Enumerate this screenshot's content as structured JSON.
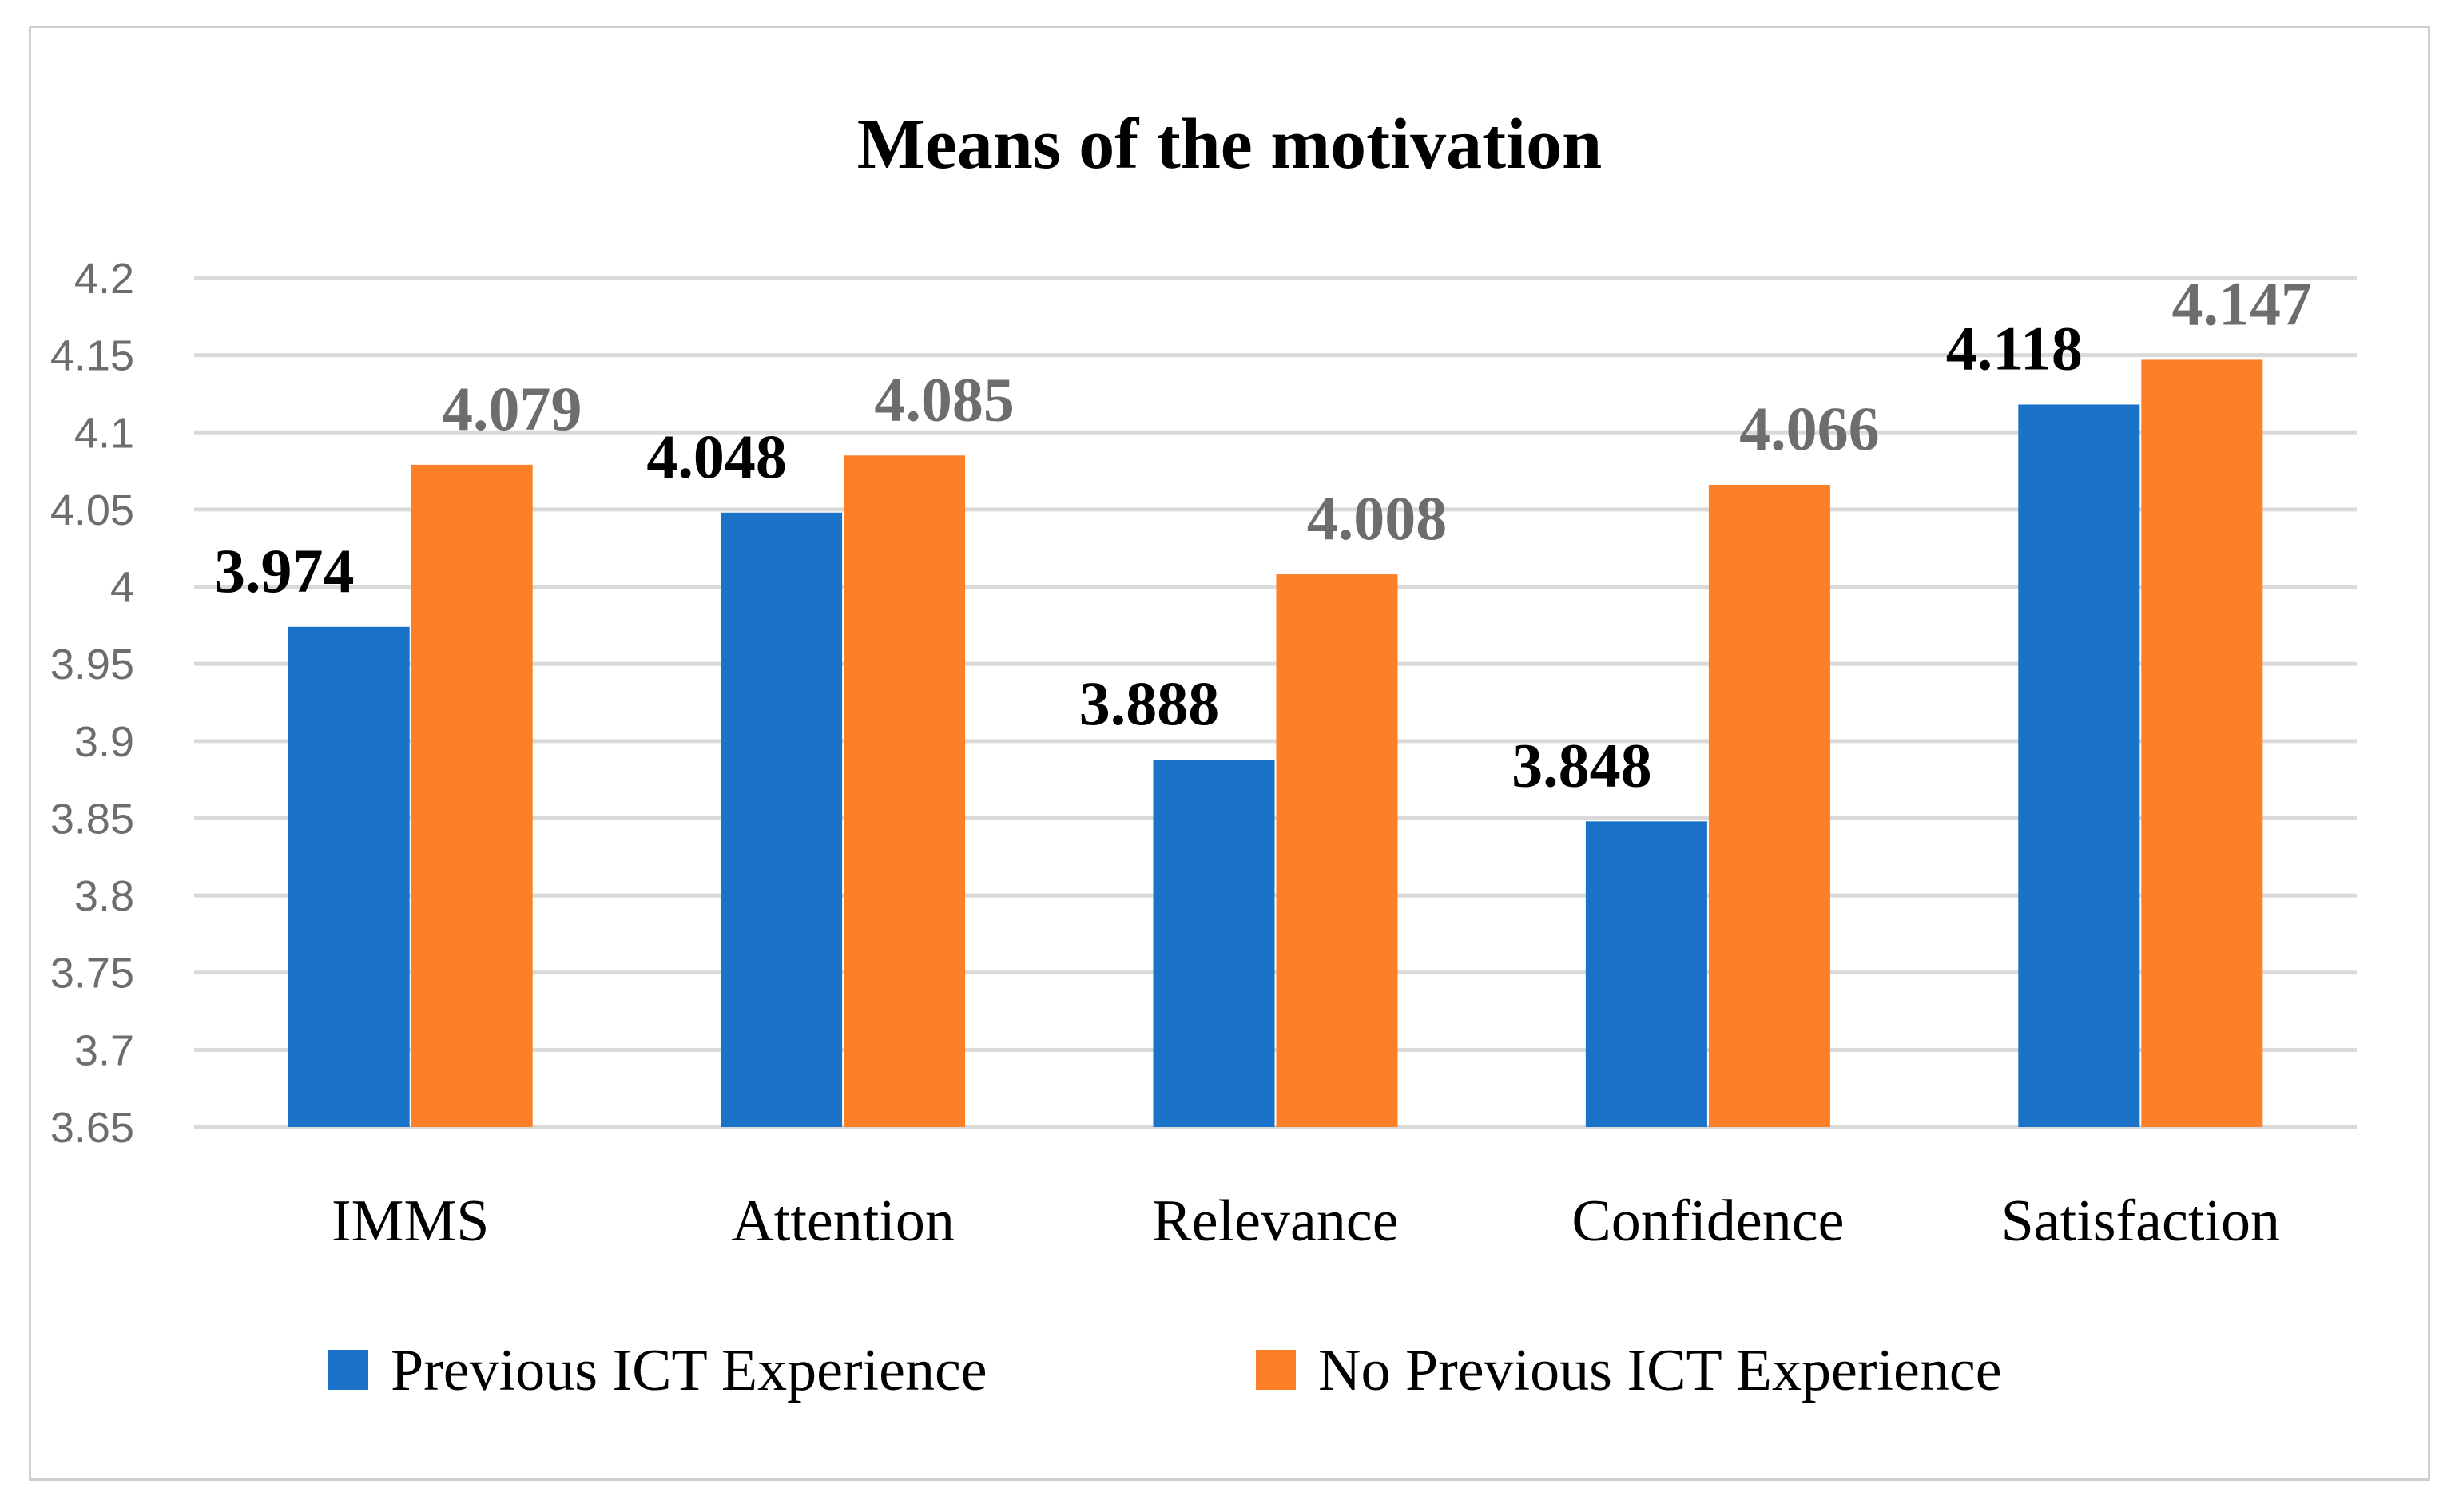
{
  "chart_data": {
    "type": "bar",
    "title": "Means of the motivation",
    "categories": [
      "IMMS",
      "Attention",
      "Relevance",
      "Confidence",
      "Satisfaction"
    ],
    "series": [
      {
        "name": "Previous ICT Experience",
        "color": "#1a73c9",
        "label_color": "#000000",
        "values": [
          3.974,
          4.048,
          3.888,
          3.848,
          4.118
        ],
        "labels": [
          "3.974",
          "4.048",
          "3.888",
          "3.848",
          "4.118"
        ]
      },
      {
        "name": "No Previous ICT Experience",
        "color": "#fd7f27",
        "label_color": "#6d6d6d",
        "values": [
          4.079,
          4.085,
          4.008,
          4.066,
          4.147
        ],
        "labels": [
          "4.079",
          "4.085",
          "4.008",
          "4.066",
          "4.147"
        ]
      }
    ],
    "ylim": [
      3.65,
      4.2
    ],
    "yticks": [
      "4.2",
      "4.15",
      "4.1",
      "4.05",
      "4",
      "3.95",
      "3.9",
      "3.85",
      "3.8",
      "3.75",
      "3.7",
      "3.65"
    ],
    "xlabel": "",
    "ylabel": "",
    "grid": true,
    "legend_position": "bottom"
  }
}
